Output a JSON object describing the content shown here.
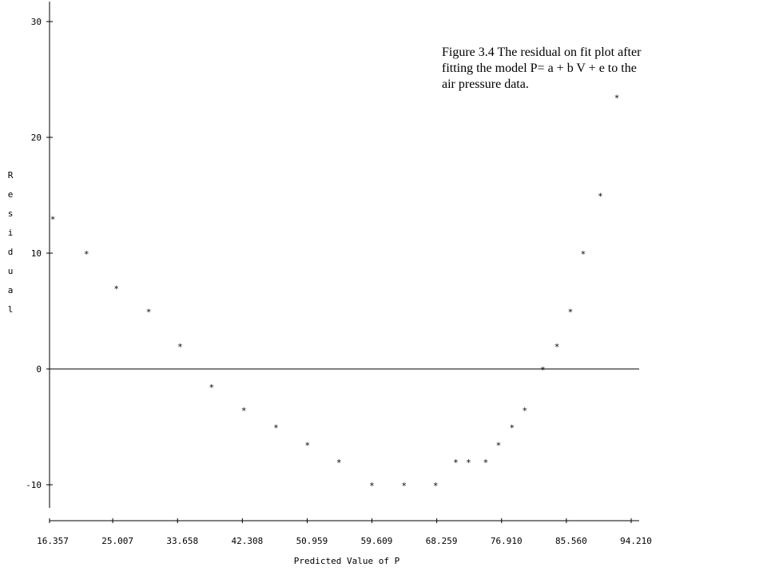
{
  "caption": {
    "line1": "Figure 3.4  The residual on fit plot after",
    "line2": "fitting the model  P= a + b V + e  to the",
    "line3": "air pressure data."
  },
  "chart_data": {
    "type": "scatter",
    "title": "",
    "xlabel": "Predicted Value of P",
    "ylabel": "Residual",
    "x_ticks": [
      "16.357",
      "25.007",
      "33.658",
      "42.308",
      "50.959",
      "59.609",
      "68.259",
      "76.910",
      "85.560",
      "94.210"
    ],
    "y_ticks": [
      "30",
      "20",
      "10",
      "0",
      "-10"
    ],
    "xlim": [
      16.357,
      94.21
    ],
    "ylim": [
      -12,
      32
    ],
    "grid": false,
    "marker": "*",
    "points": [
      {
        "x": 17.0,
        "y": 13.0
      },
      {
        "x": 21.5,
        "y": 10.0
      },
      {
        "x": 25.5,
        "y": 7.0
      },
      {
        "x": 29.8,
        "y": 5.0
      },
      {
        "x": 34.0,
        "y": 2.0
      },
      {
        "x": 38.2,
        "y": -1.5
      },
      {
        "x": 42.5,
        "y": -3.5
      },
      {
        "x": 46.8,
        "y": -5.0
      },
      {
        "x": 51.0,
        "y": -6.5
      },
      {
        "x": 55.2,
        "y": -8.0
      },
      {
        "x": 59.6,
        "y": -10.0
      },
      {
        "x": 63.9,
        "y": -10.0
      },
      {
        "x": 68.1,
        "y": -10.0
      },
      {
        "x": 70.8,
        "y": -8.0
      },
      {
        "x": 72.5,
        "y": -8.0
      },
      {
        "x": 74.8,
        "y": -8.0
      },
      {
        "x": 76.5,
        "y": -6.5
      },
      {
        "x": 78.3,
        "y": -5.0
      },
      {
        "x": 80.0,
        "y": -3.5
      },
      {
        "x": 82.4,
        "y": 0.0
      },
      {
        "x": 84.3,
        "y": 2.0
      },
      {
        "x": 86.1,
        "y": 5.0
      },
      {
        "x": 87.8,
        "y": 10.0
      },
      {
        "x": 90.1,
        "y": 15.0
      },
      {
        "x": 92.3,
        "y": 23.5
      }
    ]
  }
}
